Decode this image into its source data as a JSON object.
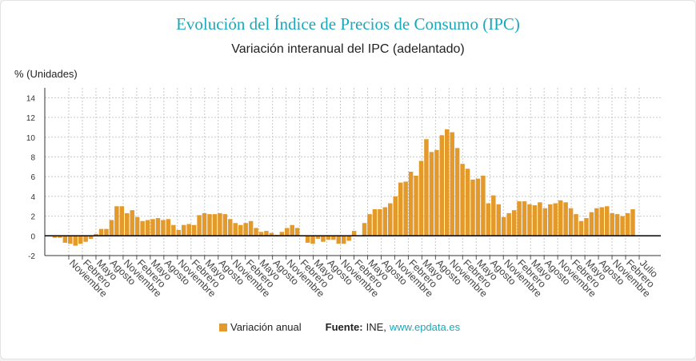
{
  "header": {
    "title": "Evolución del Índice de Precios de Consumo (IPC)",
    "subtitle": "Variación interanual del IPC (adelantado)"
  },
  "legend": {
    "series_label": "Variación anual",
    "source_label": "Fuente:",
    "source_name": "INE,",
    "source_link": "www.epdata.es"
  },
  "colors": {
    "bar": "#e39a2a",
    "title": "#19a9bd",
    "grid": "#c8c8c8",
    "zero_line": "#000000"
  },
  "chart_data": {
    "type": "bar",
    "ylabel": "% (Unidades)",
    "ylim": [
      -2,
      15
    ],
    "yticks": [
      -2,
      0,
      2,
      4,
      6,
      8,
      10,
      12,
      14
    ],
    "grid": true,
    "legend_position": "bottom",
    "tick_labels": [
      "Noviembre",
      "Febrero",
      "Mayo",
      "Agosto",
      "Noviembre",
      "Febrero",
      "Mayo",
      "Agosto",
      "Noviembre",
      "Febrero",
      "Mayo",
      "Agosto",
      "Noviembre",
      "Febrero",
      "Mayo",
      "Agosto",
      "Noviembre",
      "Febrero",
      "Mayo",
      "Agosto",
      "Noviembre",
      "Febrero",
      "Mayo",
      "Agosto",
      "Noviembre",
      "Febrero",
      "Mayo",
      "Agosto",
      "Noviembre",
      "Febrero",
      "Mayo",
      "Agosto",
      "Noviembre",
      "Febrero",
      "Mayo",
      "Agosto",
      "Noviembre",
      "Febrero",
      "Mayo",
      "Agosto",
      "Noviembre",
      "Febrero",
      "Julio"
    ],
    "series": [
      {
        "name": "Variación anual",
        "values": [
          0.0,
          -0.2,
          -0.2,
          -0.7,
          -0.8,
          -1.0,
          -0.8,
          -0.6,
          -0.3,
          0.2,
          0.7,
          0.7,
          1.6,
          3.0,
          3.0,
          2.3,
          2.6,
          1.9,
          1.5,
          1.6,
          1.7,
          1.8,
          1.6,
          1.7,
          1.1,
          0.6,
          1.1,
          1.2,
          1.1,
          2.1,
          2.3,
          2.2,
          2.2,
          2.3,
          2.2,
          1.7,
          1.3,
          1.1,
          1.3,
          1.5,
          0.8,
          0.4,
          0.5,
          0.3,
          0.1,
          0.4,
          0.8,
          1.1,
          0.8,
          0.0,
          -0.7,
          -0.8,
          -0.3,
          -0.6,
          -0.4,
          -0.4,
          -0.8,
          -0.8,
          -0.5,
          0.5,
          0.0,
          1.3,
          2.2,
          2.7,
          2.7,
          2.9,
          3.3,
          4.0,
          5.4,
          5.5,
          6.5,
          6.1,
          7.6,
          9.8,
          8.5,
          8.7,
          10.2,
          10.8,
          10.5,
          8.9,
          7.3,
          6.8,
          5.7,
          5.8,
          6.1,
          3.3,
          4.1,
          3.2,
          1.9,
          2.3,
          2.6,
          3.5,
          3.5,
          3.2,
          3.1,
          3.4,
          2.8,
          3.2,
          3.3,
          3.6,
          3.4,
          2.8,
          2.2,
          1.5,
          1.8,
          2.4,
          2.8,
          2.9,
          3.0,
          2.3,
          2.2,
          2.0,
          2.3,
          2.7
        ]
      }
    ]
  }
}
